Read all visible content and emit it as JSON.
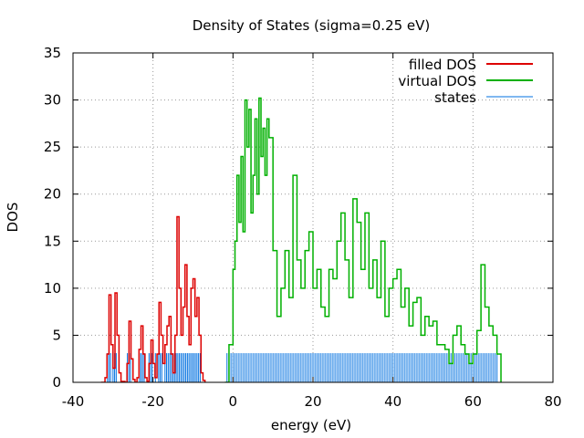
{
  "chart_data": {
    "type": "line",
    "title": "Density of States (sigma=0.25 eV)",
    "xlabel": "energy (eV)",
    "ylabel": "DOS",
    "xlim": [
      -40,
      80
    ],
    "ylim": [
      0,
      35
    ],
    "x_ticks": [
      -40,
      -20,
      0,
      20,
      40,
      60,
      80
    ],
    "y_ticks": [
      0,
      5,
      10,
      15,
      20,
      25,
      30,
      35
    ],
    "x_tick_labels": [
      "-40",
      "-20",
      "0",
      "20",
      "40",
      "60",
      "80"
    ],
    "y_tick_labels": [
      "0",
      "5",
      "10",
      "15",
      "20",
      "25",
      "30",
      "35"
    ],
    "grid": true,
    "legend_position": "top-right",
    "colors": {
      "filled": "#dd0000",
      "virtual": "#00b000",
      "states": "#0070e0"
    },
    "series": [
      {
        "name": "filled DOS",
        "x": [
          -33,
          -32,
          -31.5,
          -31,
          -30.5,
          -30,
          -29.5,
          -29,
          -28.5,
          -28,
          -27,
          -26.5,
          -26,
          -25.5,
          -25,
          -24.5,
          -24,
          -23.5,
          -23,
          -22.5,
          -22,
          -21.5,
          -21,
          -20.5,
          -20,
          -19.5,
          -19,
          -18.5,
          -18,
          -17.5,
          -17,
          -16.5,
          -16,
          -15.5,
          -15,
          -14.5,
          -14,
          -13.5,
          -13,
          -12.5,
          -12,
          -11.5,
          -11,
          -10.5,
          -10,
          -9.5,
          -9,
          -8.5,
          -8,
          -7.5,
          -7
        ],
        "y": [
          0,
          0.5,
          3,
          9.3,
          4,
          1.5,
          9.5,
          5,
          1,
          0.1,
          0,
          2,
          6.5,
          2.5,
          0.3,
          0,
          0.5,
          3.5,
          6,
          3,
          0.5,
          0.1,
          2,
          4.5,
          2,
          0.5,
          3,
          8.5,
          5,
          2,
          4,
          6,
          7,
          3,
          1,
          5,
          17.6,
          10,
          5,
          8,
          12.5,
          7,
          4,
          10,
          11,
          7,
          9,
          5,
          1,
          0.2,
          0
        ]
      },
      {
        "name": "virtual DOS",
        "x": [
          -2,
          -1,
          0,
          0.5,
          1,
          1.5,
          2,
          2.5,
          3,
          3.5,
          4,
          4.5,
          5,
          5.5,
          6,
          6.5,
          7,
          7.5,
          8,
          8.5,
          9,
          10,
          11,
          12,
          13,
          14,
          15,
          16,
          17,
          18,
          19,
          20,
          21,
          22,
          23,
          24,
          25,
          26,
          27,
          28,
          29,
          30,
          31,
          32,
          33,
          34,
          35,
          36,
          37,
          38,
          39,
          40,
          41,
          42,
          43,
          44,
          45,
          46,
          47,
          48,
          49,
          50,
          51,
          52,
          53,
          54,
          55,
          56,
          57,
          58,
          59,
          60,
          61,
          62,
          63,
          64,
          65,
          66,
          67
        ],
        "y": [
          0,
          4,
          12,
          15,
          22,
          17,
          24,
          16,
          30,
          25,
          29,
          18,
          22,
          28,
          20,
          30.2,
          24,
          27,
          22,
          28,
          26,
          14,
          7,
          10,
          14,
          9,
          22,
          13,
          10,
          14,
          16,
          10,
          12,
          8,
          7,
          12,
          11,
          15,
          18,
          13,
          9,
          19.5,
          17,
          12,
          18,
          10,
          13,
          9,
          15,
          7,
          10,
          11,
          12,
          8,
          10,
          6,
          8.5,
          9,
          5,
          7,
          6,
          6.5,
          4,
          4,
          3.5,
          2,
          5,
          6,
          4,
          3,
          2,
          3,
          5.5,
          12.5,
          8,
          6,
          5,
          3,
          0
        ]
      },
      {
        "name": "states",
        "height": 3.1,
        "x": [
          -31.4,
          -31,
          -30.6,
          -30,
          -29.6,
          -29.2,
          -26.4,
          -26,
          -25.6,
          -23.4,
          -23,
          -22.6,
          -22.2,
          -21,
          -20.6,
          -20.2,
          -19.4,
          -18.6,
          -18.2,
          -17.8,
          -17,
          -16.6,
          -16.2,
          -15.8,
          -15.4,
          -15,
          -14.6,
          -14.2,
          -13.8,
          -13.4,
          -13,
          -12.6,
          -12.2,
          -11.8,
          -11.4,
          -11,
          -10.6,
          -10.2,
          -9.8,
          -9.4,
          -9,
          -8.6,
          -8.2,
          -1.5,
          -1,
          -0.5,
          0,
          0.5,
          1,
          1.5,
          2,
          2.5,
          3,
          3.5,
          4,
          4.5,
          5,
          5.5,
          6,
          6.5,
          7,
          7.5,
          8,
          8.5,
          9,
          9.5,
          10,
          10.5,
          11,
          11.5,
          12,
          12.5,
          13,
          13.5,
          14,
          14.5,
          15,
          15.5,
          16,
          16.5,
          17,
          17.5,
          18,
          18.5,
          19,
          19.5,
          20,
          20.5,
          21,
          21.5,
          22,
          22.5,
          23,
          23.5,
          24,
          24.5,
          25,
          25.5,
          26,
          26.5,
          27,
          27.5,
          28,
          28.5,
          29,
          29.5,
          30,
          30.5,
          31,
          31.5,
          32,
          32.5,
          33,
          33.5,
          34,
          34.5,
          35,
          35.5,
          36,
          36.5,
          37,
          37.5,
          38,
          38.5,
          39,
          39.5,
          40,
          40.5,
          41,
          41.5,
          42,
          42.5,
          43,
          43.5,
          44,
          44.5,
          45,
          45.5,
          46,
          46.5,
          47,
          47.5,
          48,
          48.5,
          49,
          49.5,
          50,
          50.5,
          51,
          51.5,
          52,
          52.5,
          53,
          53.5,
          54,
          54.5,
          55,
          55.5,
          56,
          56.5,
          57,
          57.5,
          58,
          58.5,
          59,
          59.5,
          60,
          60.5,
          61,
          61.5,
          62,
          62.5,
          63,
          63.5,
          64,
          64.5,
          65,
          65.5,
          66
        ]
      }
    ]
  }
}
